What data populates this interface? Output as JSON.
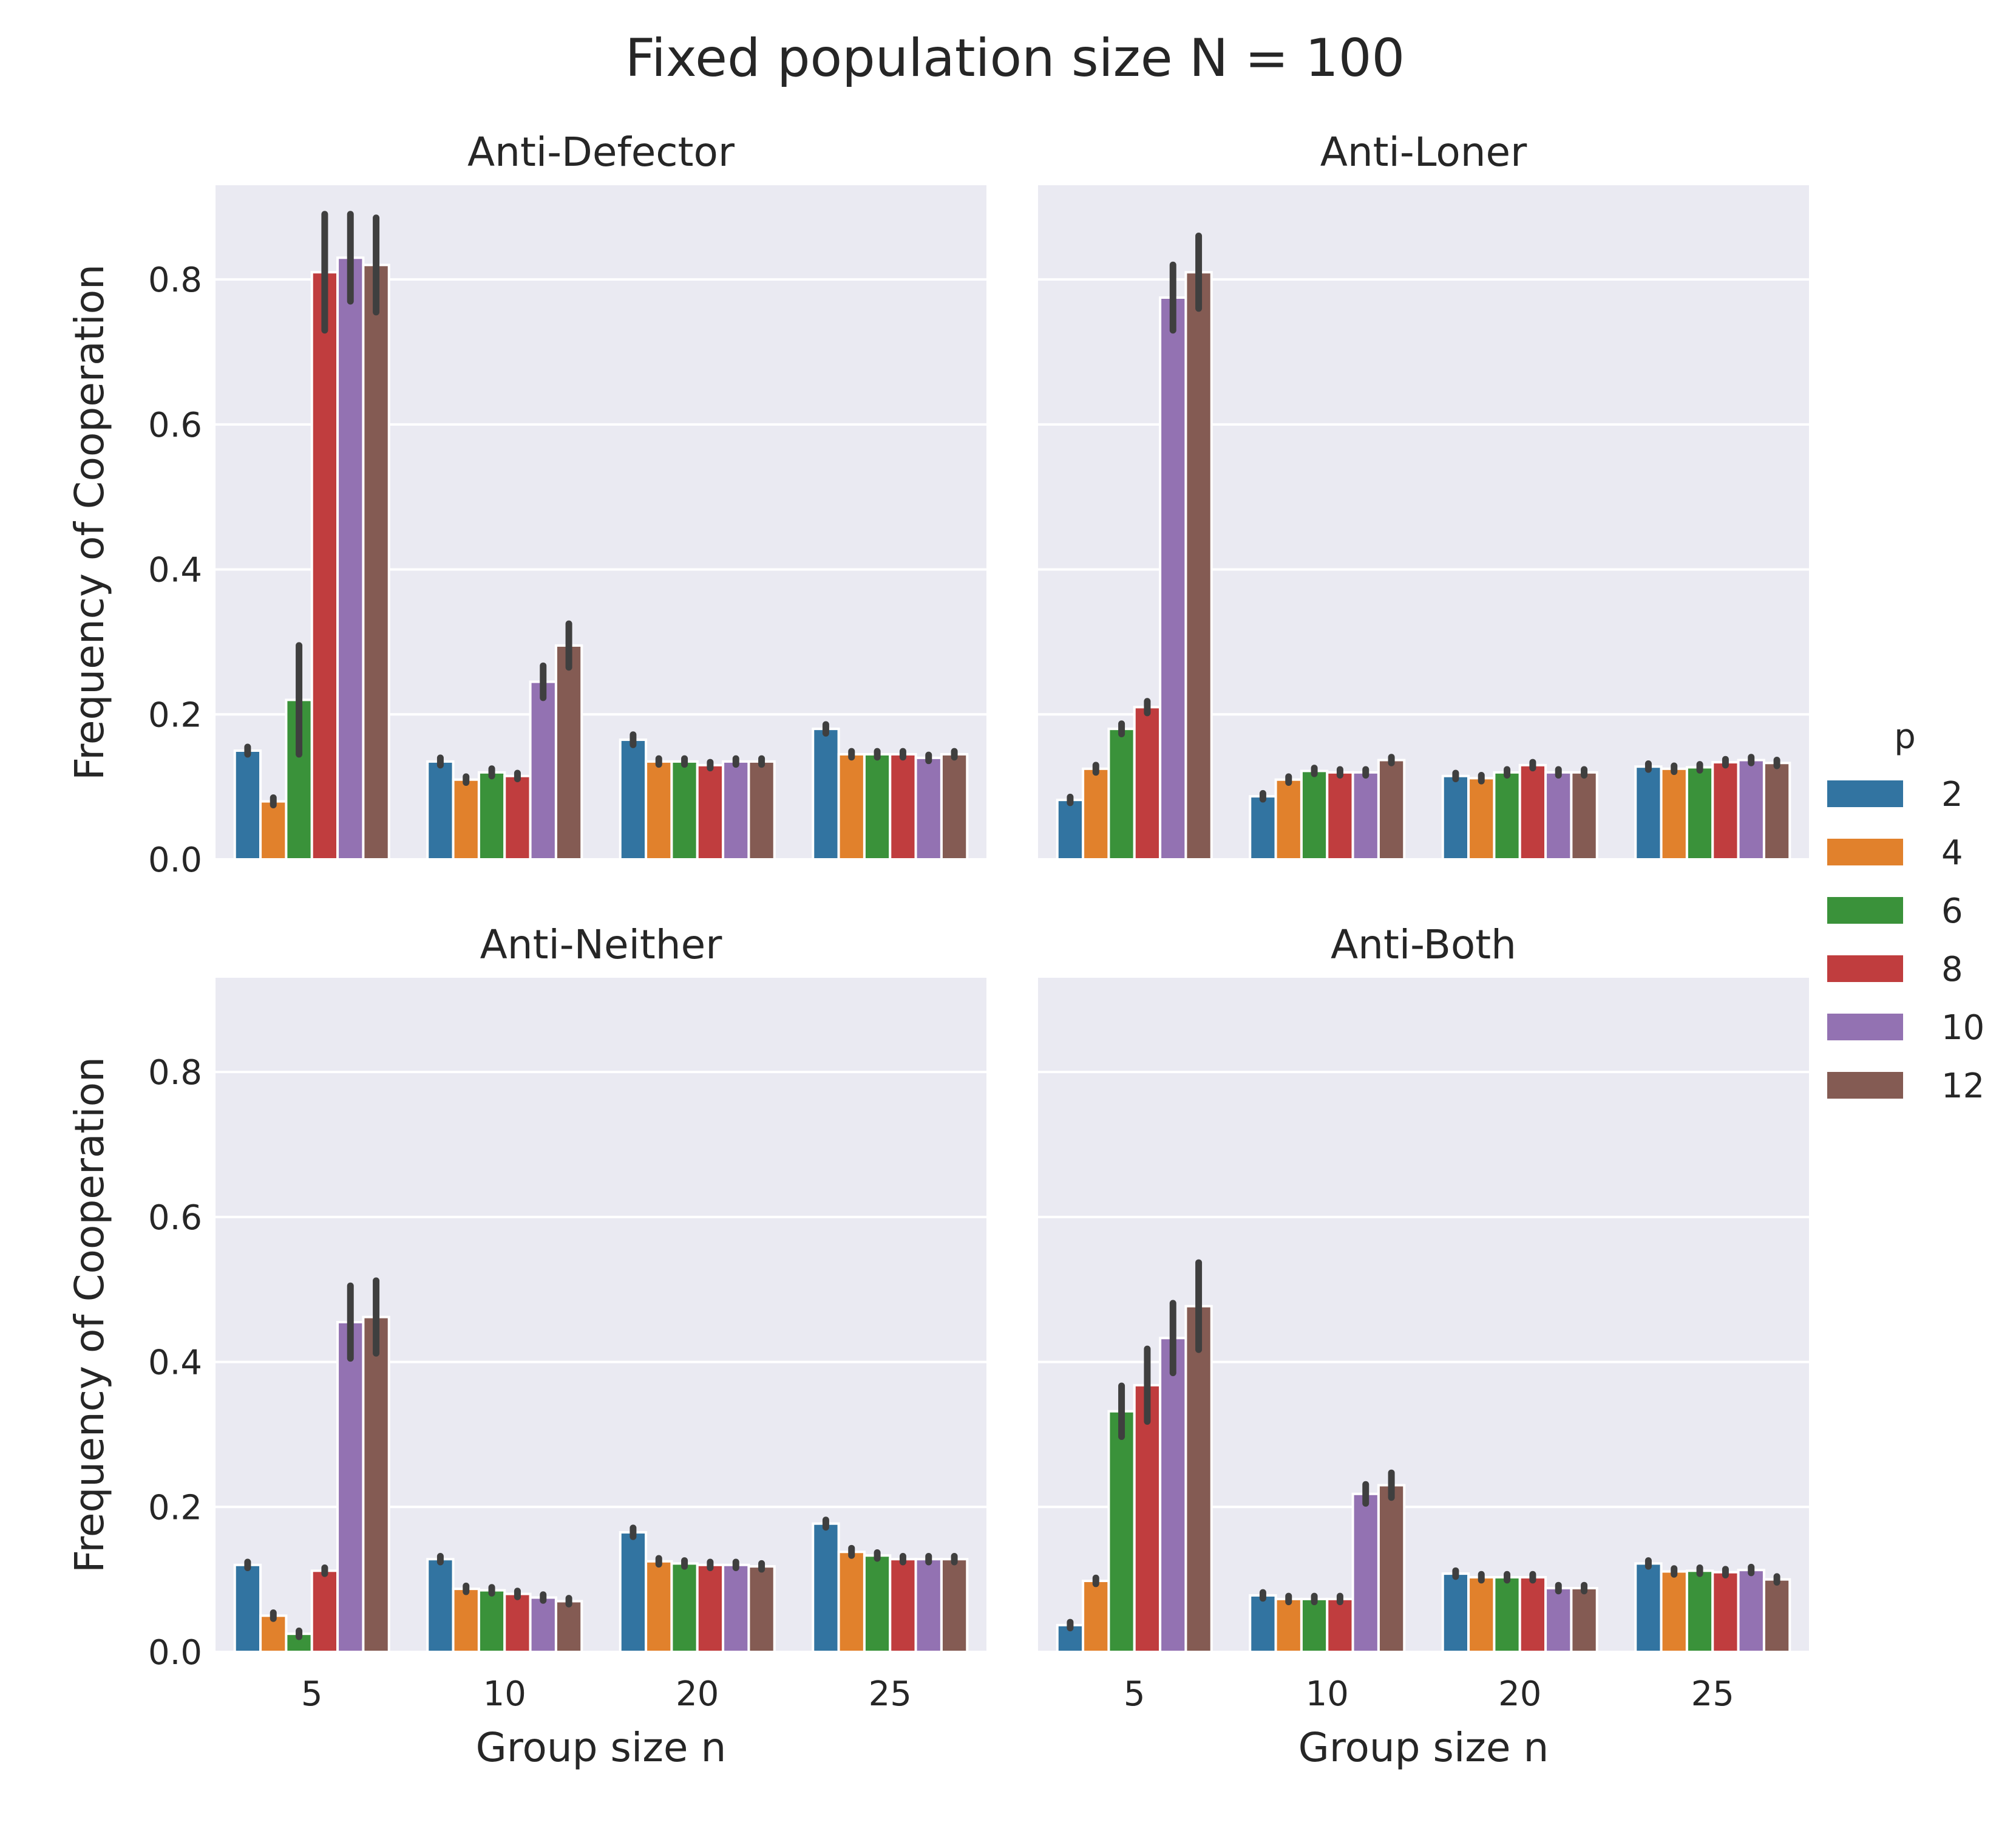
{
  "figure": {
    "title": "Fixed population size N = 100"
  },
  "chart_data": {
    "type": "bar",
    "categories": [
      "5",
      "10",
      "20",
      "25"
    ],
    "xlabel": "Group size n",
    "ylabel": "Frequency of Cooperation",
    "ylim": [
      0,
      0.93
    ],
    "yticks": [
      "0.0",
      "0.2",
      "0.4",
      "0.6",
      "0.8"
    ],
    "grid": true,
    "legend": {
      "title": "p",
      "placement": "right",
      "entries": [
        {
          "label": "2",
          "color": "#3274a1"
        },
        {
          "label": "4",
          "color": "#e1812c"
        },
        {
          "label": "6",
          "color": "#3a923a"
        },
        {
          "label": "8",
          "color": "#c03d3e"
        },
        {
          "label": "10",
          "color": "#9372b2"
        },
        {
          "label": "12",
          "color": "#845b53"
        }
      ]
    },
    "panels": [
      {
        "title": "Anti-Defector",
        "values": [
          [
            0.15,
            0.08,
            0.22,
            0.81,
            0.83,
            0.82
          ],
          [
            0.135,
            0.11,
            0.12,
            0.115,
            0.245,
            0.295
          ],
          [
            0.165,
            0.135,
            0.135,
            0.13,
            0.135,
            0.135
          ],
          [
            0.18,
            0.145,
            0.145,
            0.145,
            0.14,
            0.145
          ]
        ],
        "error": [
          [
            0.005,
            0.005,
            0.075,
            0.08,
            0.06,
            0.065
          ],
          [
            0.005,
            0.004,
            0.005,
            0.004,
            0.022,
            0.03
          ],
          [
            0.007,
            0.004,
            0.004,
            0.004,
            0.004,
            0.004
          ],
          [
            0.006,
            0.004,
            0.004,
            0.004,
            0.004,
            0.004
          ]
        ]
      },
      {
        "title": "Anti-Loner",
        "values": [
          [
            0.082,
            0.125,
            0.18,
            0.21,
            0.775,
            0.81
          ],
          [
            0.087,
            0.11,
            0.122,
            0.12,
            0.12,
            0.137
          ],
          [
            0.115,
            0.112,
            0.12,
            0.13,
            0.12,
            0.12
          ],
          [
            0.128,
            0.125,
            0.127,
            0.134,
            0.137,
            0.133
          ]
        ],
        "error": [
          [
            0.004,
            0.005,
            0.007,
            0.008,
            0.045,
            0.05
          ],
          [
            0.004,
            0.004,
            0.004,
            0.004,
            0.004,
            0.004
          ],
          [
            0.004,
            0.004,
            0.004,
            0.004,
            0.004,
            0.004
          ],
          [
            0.004,
            0.004,
            0.004,
            0.004,
            0.004,
            0.004
          ]
        ]
      },
      {
        "title": "Anti-Neither",
        "values": [
          [
            0.12,
            0.05,
            0.025,
            0.112,
            0.455,
            0.462
          ],
          [
            0.128,
            0.087,
            0.085,
            0.08,
            0.075,
            0.07
          ],
          [
            0.165,
            0.125,
            0.122,
            0.12,
            0.12,
            0.118
          ],
          [
            0.177,
            0.138,
            0.133,
            0.128,
            0.128,
            0.128
          ]
        ],
        "error": [
          [
            0.004,
            0.004,
            0.004,
            0.004,
            0.05,
            0.05
          ],
          [
            0.004,
            0.004,
            0.004,
            0.004,
            0.004,
            0.004
          ],
          [
            0.006,
            0.004,
            0.004,
            0.004,
            0.004,
            0.004
          ],
          [
            0.005,
            0.005,
            0.004,
            0.004,
            0.004,
            0.004
          ]
        ]
      },
      {
        "title": "Anti-Both",
        "values": [
          [
            0.037,
            0.098,
            0.332,
            0.368,
            0.433,
            0.477
          ],
          [
            0.078,
            0.073,
            0.073,
            0.073,
            0.218,
            0.23
          ],
          [
            0.108,
            0.103,
            0.103,
            0.103,
            0.088,
            0.088
          ],
          [
            0.122,
            0.111,
            0.112,
            0.11,
            0.113,
            0.1
          ]
        ],
        "error": [
          [
            0.004,
            0.004,
            0.035,
            0.05,
            0.048,
            0.06
          ],
          [
            0.004,
            0.004,
            0.004,
            0.004,
            0.013,
            0.017
          ],
          [
            0.004,
            0.004,
            0.004,
            0.004,
            0.004,
            0.004
          ],
          [
            0.004,
            0.004,
            0.004,
            0.004,
            0.004,
            0.004
          ]
        ]
      }
    ]
  }
}
